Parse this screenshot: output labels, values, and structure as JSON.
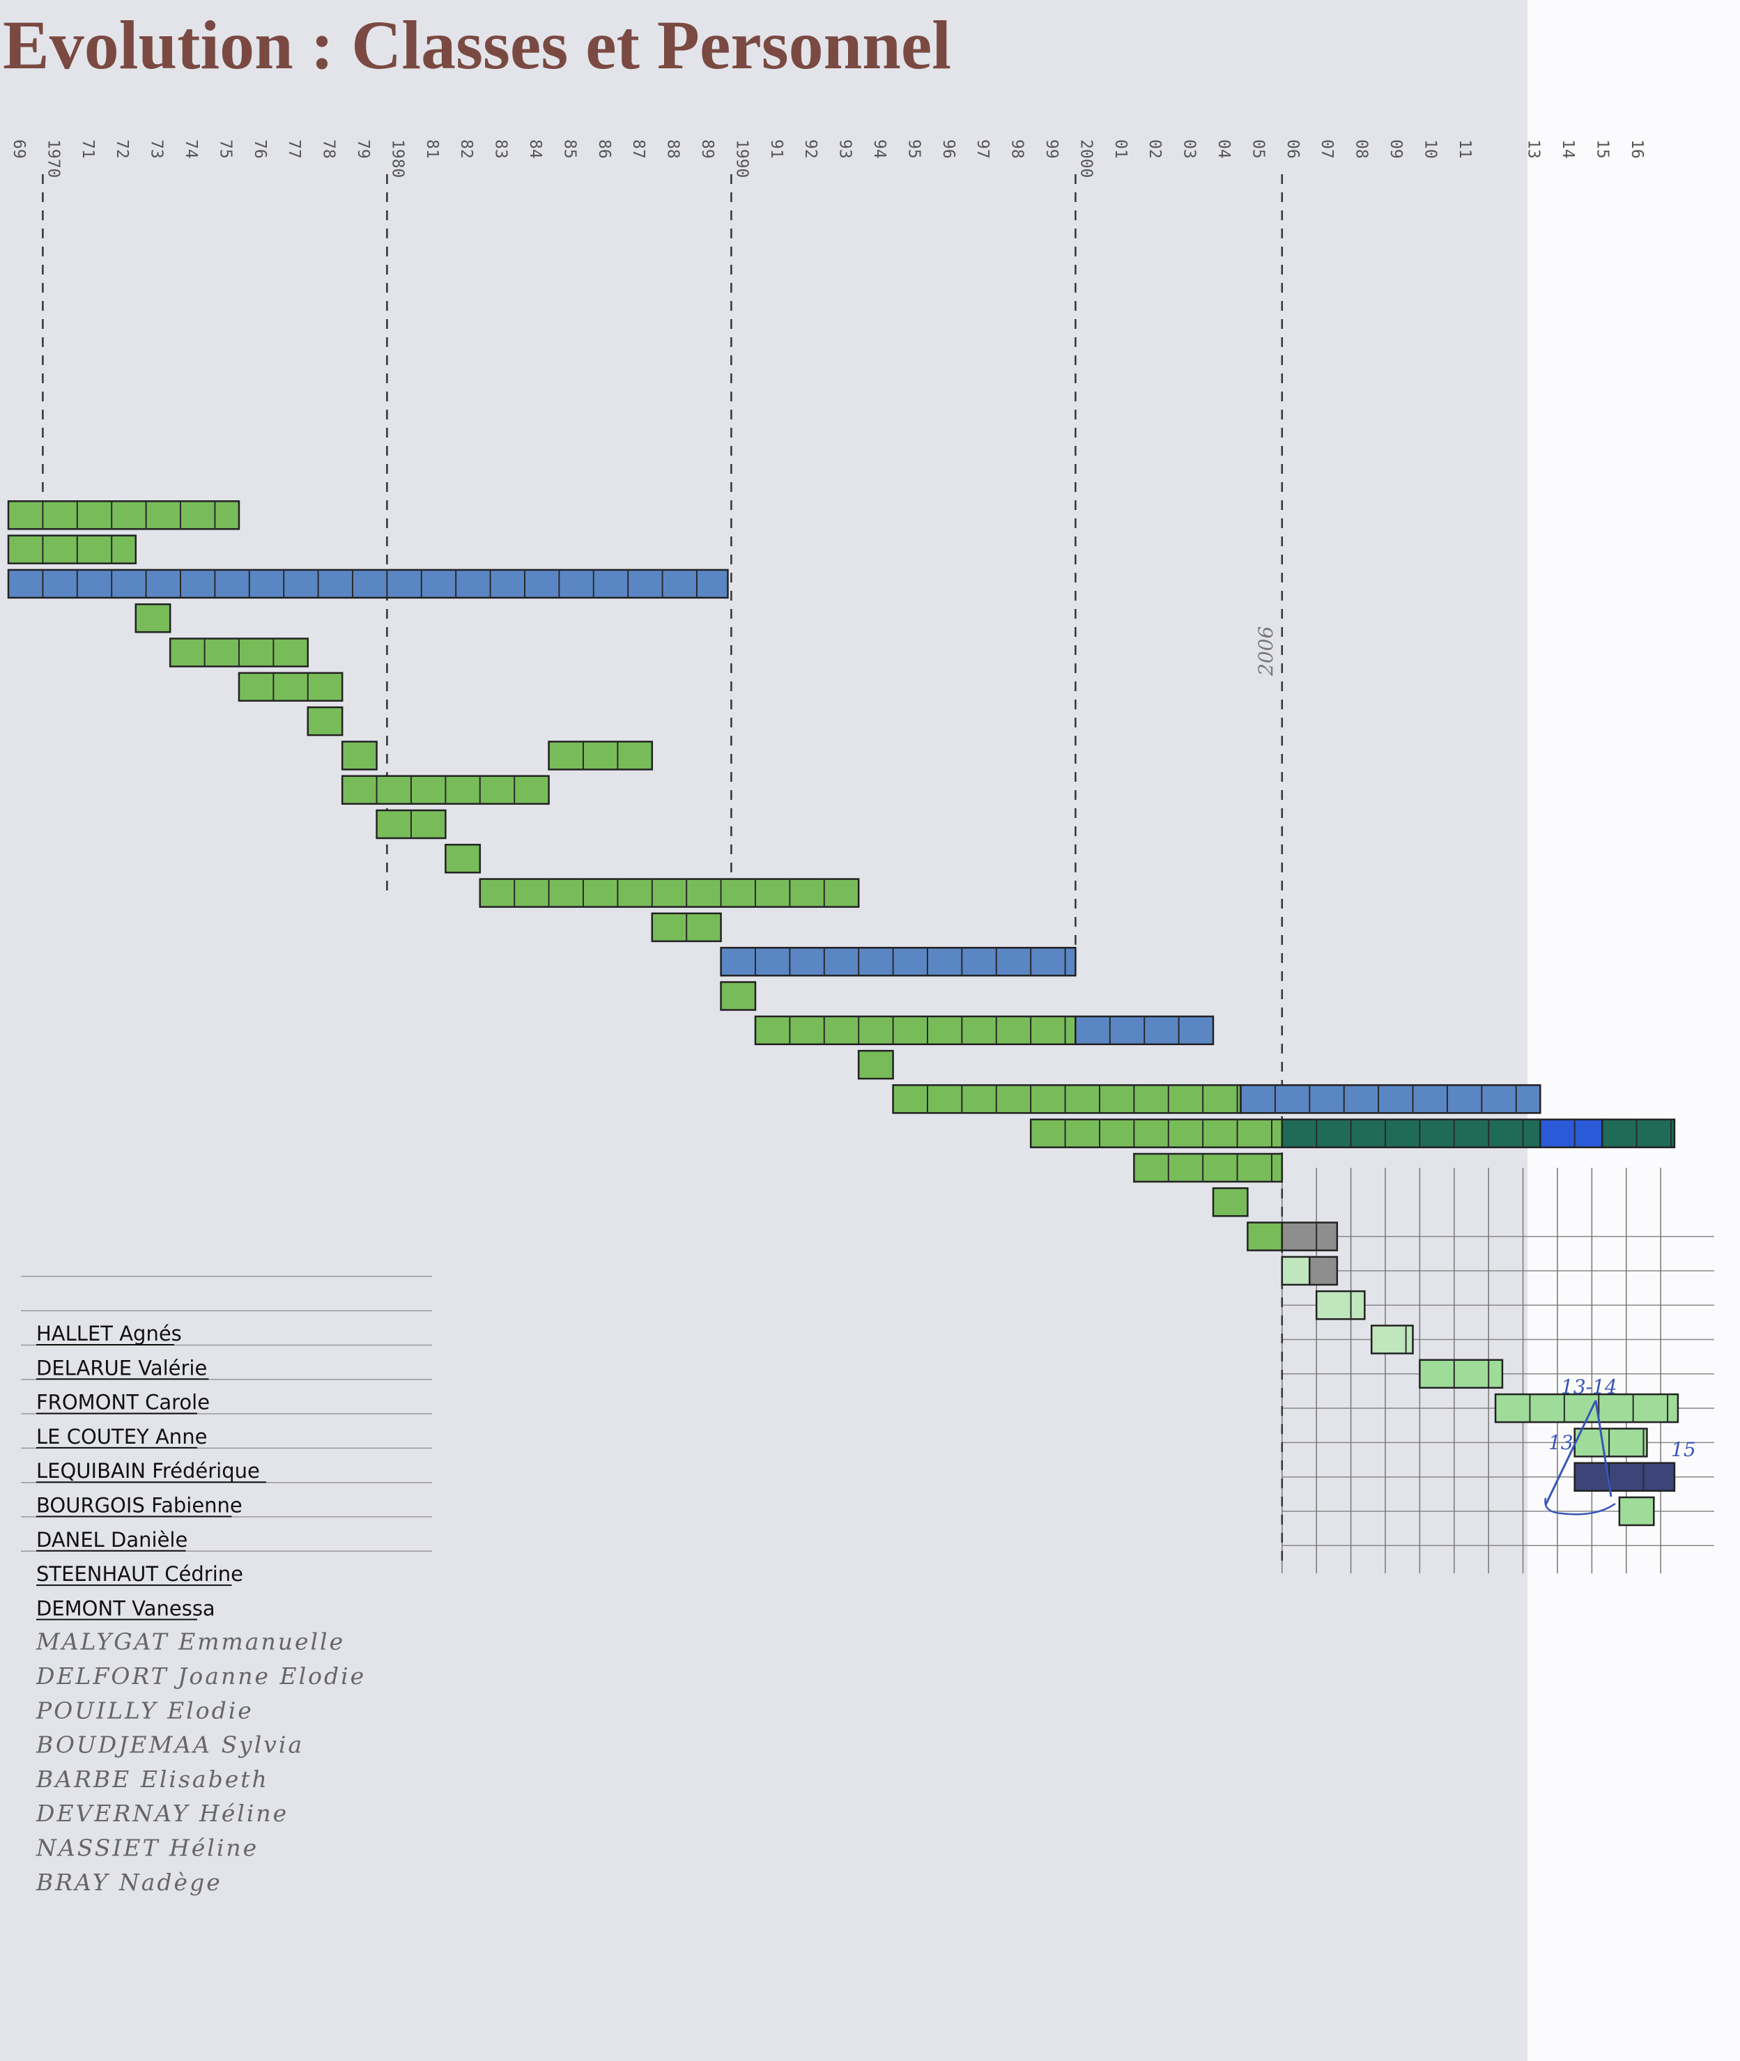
{
  "page": {
    "title": "Evolution : Classes et Personnel"
  },
  "colors": {
    "green": "#78bc5a",
    "blue": "#5b86c4",
    "dark_teal": "#1f6b57",
    "navy": "#3c4478",
    "bright_blue": "#2b5ad8",
    "light_green": "#bfe6bd",
    "pale_green": "#9fdc9a",
    "gray_box": "#8e8e8e",
    "dash_line": "#333333",
    "handwriting_blue": "#3856b8"
  },
  "chart_data": {
    "type": "gantt",
    "title": "Evolution : Classes et Personnel",
    "x_axis": {
      "unit": "year",
      "range": [
        1969,
        2016
      ],
      "tick_labels": [
        "69",
        "1970",
        "71",
        "72",
        "73",
        "74",
        "75",
        "76",
        "77",
        "78",
        "79",
        "1980",
        "81",
        "82",
        "83",
        "84",
        "85",
        "86",
        "87",
        "88",
        "89",
        "1990",
        "91",
        "92",
        "93",
        "94",
        "95",
        "96",
        "97",
        "98",
        "99",
        "2000",
        "01",
        "02",
        "03",
        "04",
        "05",
        "06",
        "07",
        "08",
        "09",
        "10",
        "11",
        "13",
        "14",
        "15",
        "16"
      ],
      "reference_lines": [
        1970,
        1980,
        1990,
        2000,
        2006
      ],
      "reference_note": "2006"
    },
    "names": [
      "HALLET Agnés",
      "DELARUE Valérie",
      "FROMONT Carole",
      "LE COUTEY Anne",
      "LEQUIBAIN Frédérique",
      "BOURGOIS Fabienne",
      "DANEL Danièle",
      "STEENHAUT Cédrine",
      "DEMONT Vanessa",
      "MALYGAT Emmanuelle",
      "DELFORT Joanne Elodie",
      "POUILLY Elodie",
      "BOUDJEMAA Sylvia",
      "BARBE Elisabeth",
      "DEVERNAY Héline",
      "NASSIET Héline",
      "BRAY Nadège"
    ],
    "bars": [
      {
        "row": 1,
        "start": 1969,
        "end": 1975.7,
        "color": "green"
      },
      {
        "row": 2,
        "start": 1969,
        "end": 1972.7,
        "color": "green"
      },
      {
        "row": 3,
        "start": 1969,
        "end": 1989.9,
        "color": "blue"
      },
      {
        "row": 4,
        "start": 1972.7,
        "end": 1973.7,
        "color": "green"
      },
      {
        "row": 5,
        "start": 1973.7,
        "end": 1977.7,
        "color": "green"
      },
      {
        "row": 6,
        "start": 1975.7,
        "end": 1978.7,
        "color": "green"
      },
      {
        "row": 7,
        "start": 1977.7,
        "end": 1978.7,
        "color": "green"
      },
      {
        "row": 8,
        "start": 1978.7,
        "end": 1979.7,
        "color": "green"
      },
      {
        "row": 8,
        "start": 1984.7,
        "end": 1987.7,
        "color": "green"
      },
      {
        "row": 9,
        "start": 1978.7,
        "end": 1984.7,
        "color": "green"
      },
      {
        "row": 10,
        "start": 1979.7,
        "end": 1981.7,
        "color": "green"
      },
      {
        "row": 11,
        "start": 1981.7,
        "end": 1982.7,
        "color": "green"
      },
      {
        "row": 12,
        "start": 1982.7,
        "end": 1993.7,
        "color": "green"
      },
      {
        "row": 13,
        "start": 1987.7,
        "end": 1989.7,
        "color": "green"
      },
      {
        "row": 14,
        "start": 1989.7,
        "end": 2000.0,
        "color": "blue"
      },
      {
        "row": 15,
        "start": 1989.7,
        "end": 1990.7,
        "color": "green"
      },
      {
        "row": 16,
        "start": 1990.7,
        "end": 2000.0,
        "color": "green"
      },
      {
        "row": 16,
        "start": 2000.0,
        "end": 2004.0,
        "color": "blue"
      },
      {
        "row": 17,
        "start": 1993.7,
        "end": 1994.7,
        "color": "green"
      },
      {
        "row": 18,
        "start": 1994.7,
        "end": 2004.8,
        "color": "green"
      },
      {
        "row": 18,
        "start": 2004.8,
        "end": 2013.5,
        "color": "blue"
      },
      {
        "row": 19,
        "start": 1998.7,
        "end": 2006.0,
        "color": "green"
      },
      {
        "row": 19,
        "start": 2006.0,
        "end": 2013.5,
        "color": "dark_teal"
      },
      {
        "row": 19,
        "start": 2013.5,
        "end": 2015.3,
        "color": "bright_blue"
      },
      {
        "row": 19,
        "start": 2015.3,
        "end": 2017.4,
        "color": "dark_teal"
      },
      {
        "row": 20,
        "start": 2001.7,
        "end": 2006.0,
        "color": "green"
      },
      {
        "row": 21,
        "start": 2004.0,
        "end": 2005.0,
        "color": "green"
      },
      {
        "row": 22,
        "start": 2005.0,
        "end": 2006.0,
        "color": "green"
      },
      {
        "row": 22,
        "start": 2006.0,
        "end": 2007.6,
        "color": "gray_box"
      },
      {
        "row": 23,
        "start": 2006.0,
        "end": 2006.8,
        "color": "light_green"
      },
      {
        "row": 23,
        "start": 2006.8,
        "end": 2007.6,
        "color": "gray_box"
      },
      {
        "row": 24,
        "start": 2007.0,
        "end": 2008.4,
        "color": "light_green"
      },
      {
        "row": 25,
        "start": 2008.6,
        "end": 2009.8,
        "color": "light_green"
      },
      {
        "row": 26,
        "start": 2010.0,
        "end": 2012.4,
        "color": "pale_green"
      },
      {
        "row": 27,
        "start": 2012.2,
        "end": 2017.5,
        "color": "pale_green"
      },
      {
        "row": 28,
        "start": 2014.5,
        "end": 2016.6,
        "color": "pale_green"
      },
      {
        "row": 29,
        "start": 2014.5,
        "end": 2017.4,
        "color": "navy"
      },
      {
        "row": 30,
        "start": 2015.8,
        "end": 2016.8,
        "color": "pale_green"
      }
    ],
    "annotations": [
      "13-14",
      "13",
      "15"
    ],
    "grid": true
  }
}
